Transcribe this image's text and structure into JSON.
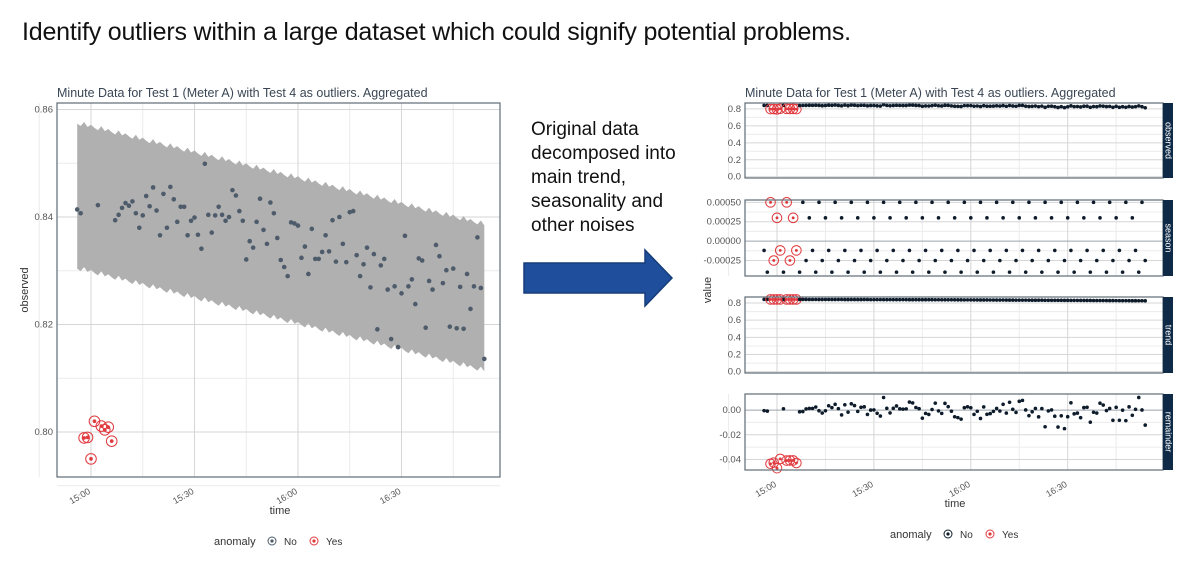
{
  "slide": {
    "title": "Identify outliers within a large dataset which could signify potential problems.",
    "middle_text": "Original data decomposed into main trend, seasonality and other noises",
    "arrow_color": "#1f4e9c"
  },
  "colors": {
    "normal_left": "#4d5b6a",
    "normal_right": "#0d1b2a",
    "anomaly": "#e0393e",
    "band": "#b0b0b0",
    "strip": "#0f2a46"
  },
  "series": {
    "time": [
      "14:56",
      "14:57",
      "14:58",
      "14:59",
      "15:00",
      "15:01",
      "15:02",
      "15:03",
      "15:04",
      "15:05",
      "15:06",
      "15:07",
      "15:08",
      "15:09",
      "15:10",
      "15:11",
      "15:12",
      "15:13",
      "15:14",
      "15:15",
      "15:16",
      "15:17",
      "15:18",
      "15:19",
      "15:20",
      "15:21",
      "15:22",
      "15:23",
      "15:24",
      "15:25",
      "15:26",
      "15:27",
      "15:28",
      "15:29",
      "15:30",
      "15:31",
      "15:32",
      "15:33",
      "15:34",
      "15:35",
      "15:36",
      "15:37",
      "15:38",
      "15:39",
      "15:40",
      "15:41",
      "15:42",
      "15:43",
      "15:44",
      "15:45",
      "15:46",
      "15:47",
      "15:48",
      "15:49",
      "15:50",
      "15:51",
      "15:52",
      "15:53",
      "15:54",
      "15:55",
      "15:56",
      "15:57",
      "15:58",
      "15:59",
      "16:00",
      "16:01",
      "16:02",
      "16:03",
      "16:04",
      "16:05",
      "16:06",
      "16:07",
      "16:08",
      "16:09",
      "16:10",
      "16:11",
      "16:12",
      "16:13",
      "16:14",
      "16:15",
      "16:16",
      "16:17",
      "16:18",
      "16:19",
      "16:20",
      "16:21",
      "16:22",
      "16:23",
      "16:24",
      "16:25",
      "16:26",
      "16:27",
      "16:28",
      "16:29",
      "16:30",
      "16:31",
      "16:32",
      "16:33",
      "16:34",
      "16:35",
      "16:36",
      "16:37",
      "16:38",
      "16:39",
      "16:40",
      "16:41",
      "16:42",
      "16:43",
      "16:44",
      "16:45",
      "16:46",
      "16:47",
      "16:48",
      "16:49",
      "16:50",
      "16:51",
      "16:52",
      "16:53",
      "16:54"
    ],
    "observed": [
      0.8414,
      0.8407,
      0.7989,
      0.799,
      0.795,
      0.802,
      0.8422,
      0.8011,
      0.8004,
      0.8009,
      0.7983,
      0.8394,
      0.8404,
      0.8417,
      0.8426,
      0.8421,
      0.8429,
      0.8407,
      0.838,
      0.8403,
      0.8439,
      0.842,
      0.8455,
      0.8412,
      0.8366,
      0.8443,
      0.838,
      0.8456,
      0.8433,
      0.8391,
      0.8419,
      0.8419,
      0.8366,
      0.8393,
      0.8399,
      0.8367,
      0.8341,
      0.8499,
      0.8404,
      0.8371,
      0.8403,
      0.8419,
      0.8404,
      0.8393,
      0.84,
      0.845,
      0.844,
      0.8411,
      0.8393,
      0.8321,
      0.8355,
      0.8343,
      0.8391,
      0.8434,
      0.8376,
      0.835,
      0.8427,
      0.8407,
      0.8361,
      0.832,
      0.8307,
      0.829,
      0.839,
      0.8388,
      0.8384,
      0.8324,
      0.8345,
      0.8294,
      0.8378,
      0.8322,
      0.8322,
      0.8335,
      0.8366,
      0.8336,
      0.8394,
      0.8317,
      0.84,
      0.835,
      0.8316,
      0.8409,
      0.8411,
      0.8329,
      0.829,
      0.8312,
      0.8343,
      0.8269,
      0.8331,
      0.8191,
      0.831,
      0.8322,
      0.8265,
      0.8173,
      0.8271,
      0.8158,
      0.8258,
      0.8365,
      0.8271,
      0.8284,
      0.8238,
      0.8323,
      0.8319,
      0.8194,
      0.8281,
      0.8265,
      0.8348,
      0.8327,
      0.8277,
      0.8301,
      0.8196,
      0.8304,
      0.8193,
      0.827,
      0.8192,
      0.8294,
      0.8229,
      0.8271,
      0.8362,
      0.8268,
      0.8136
    ],
    "anomaly_times": [
      "14:58",
      "14:59",
      "15:00",
      "15:01",
      "15:03",
      "15:04",
      "15:05",
      "15:06"
    ],
    "season_pattern": [
      -0.00012,
      -0.0004,
      0.0005,
      -0.00025,
      0.0003
    ],
    "trend_anchors": [
      [
        "14:56",
        0.842
      ],
      [
        "15:50",
        0.838
      ],
      [
        "16:35",
        0.83
      ],
      [
        "16:54",
        0.826
      ]
    ]
  },
  "chart_data": [
    {
      "type": "scatter",
      "title": "Minute Data for Test 1 (Meter A) with Test 4 as outliers. Aggregated",
      "xlabel": "time",
      "ylabel": "observed",
      "xticks": [
        "15:00",
        "15:30",
        "16:00",
        "16:30"
      ],
      "yticks": [
        {
          "v": 0.8,
          "label": "0.80"
        },
        {
          "v": 0.82,
          "label": "0.82"
        },
        {
          "v": 0.84,
          "label": "0.84"
        },
        {
          "v": 0.86,
          "label": "0.86"
        }
      ],
      "ylim": [
        0.792,
        0.8615
      ],
      "xlim": [
        "14:50",
        "16:58"
      ],
      "band": {
        "upper": [
          [
            "14:56",
            0.8575
          ],
          [
            "16:54",
            0.8387
          ]
        ],
        "lower": [
          [
            "14:56",
            0.8305
          ],
          [
            "16:54",
            0.8115
          ]
        ]
      },
      "grid": true,
      "legend": {
        "title": "anomaly",
        "entries": [
          "No",
          "Yes"
        ],
        "position": "bottom"
      }
    },
    {
      "type": "scatter",
      "title": "Minute Data for Test 1 (Meter A) with Test 4 as outliers. Aggregated",
      "xlabel": "time",
      "ylabel": "value",
      "xticks": [
        "15:00",
        "15:30",
        "16:00",
        "16:30"
      ],
      "panels": [
        {
          "label": "observed",
          "yticks": [
            {
              "v": 0,
              "label": "0.0"
            },
            {
              "v": 0.2,
              "label": "0.2"
            },
            {
              "v": 0.4,
              "label": "0.4"
            },
            {
              "v": 0.6,
              "label": "0.6"
            },
            {
              "v": 0.8,
              "label": "0.8"
            }
          ],
          "ylim": [
            -0.015,
            0.87
          ]
        },
        {
          "label": "season",
          "yticks": [
            {
              "v": -0.00025,
              "label": "-0.00025"
            },
            {
              "v": 0,
              "label": "0.00000"
            },
            {
              "v": 0.00025,
              "label": "0.00025"
            },
            {
              "v": 0.0005,
              "label": "0.00050"
            }
          ],
          "ylim": [
            -0.00045,
            0.00053
          ]
        },
        {
          "label": "trend",
          "yticks": [
            {
              "v": 0,
              "label": "0.0"
            },
            {
              "v": 0.2,
              "label": "0.2"
            },
            {
              "v": 0.4,
              "label": "0.4"
            },
            {
              "v": 0.6,
              "label": "0.6"
            },
            {
              "v": 0.8,
              "label": "0.8"
            }
          ],
          "ylim": [
            -0.015,
            0.87
          ]
        },
        {
          "label": "remainder",
          "yticks": [
            {
              "v": -0.04,
              "label": "-0.04"
            },
            {
              "v": -0.02,
              "label": "-0.02"
            },
            {
              "v": 0,
              "label": "0.00"
            }
          ],
          "ylim": [
            -0.0485,
            0.013
          ]
        }
      ],
      "grid": true,
      "legend": {
        "title": "anomaly",
        "entries": [
          "No",
          "Yes"
        ],
        "position": "bottom"
      }
    }
  ]
}
